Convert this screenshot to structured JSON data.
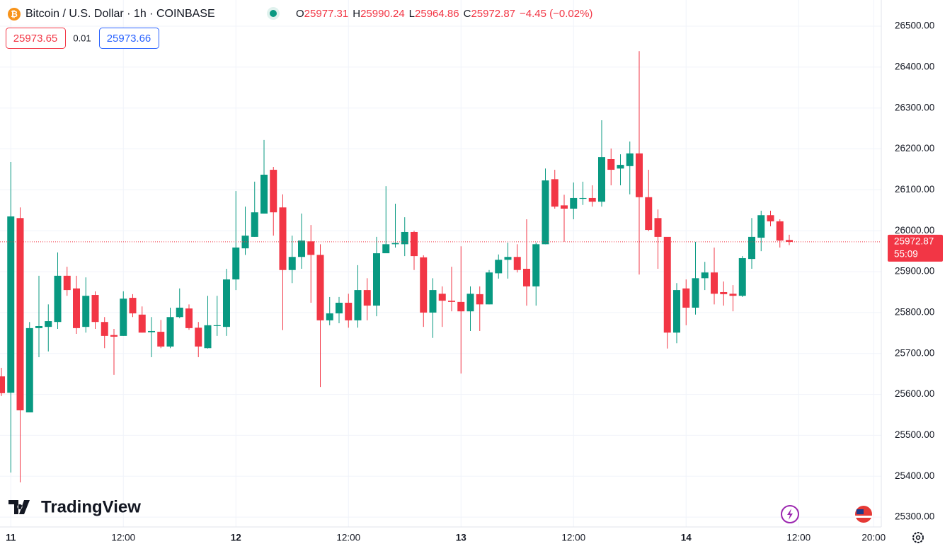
{
  "chart_data": {
    "type": "candlestick",
    "title": "Bitcoin / U.S. Dollar · 1h · COINBASE",
    "ohlc_labels": [
      "O",
      "H",
      "L",
      "C"
    ],
    "change": "−4.45 (−0.02%)",
    "sell_price": "25973.65",
    "spread": "0.01",
    "buy_price": "25973.66",
    "countdown": "55:09",
    "brand": "TradingView",
    "up_color": "#089981",
    "down_color": "#f23645",
    "grid": true,
    "ylim": [
      25276,
      26564
    ],
    "yticks": [
      {
        "value": 25300,
        "label": "25300.00"
      },
      {
        "value": 25400,
        "label": "25400.00"
      },
      {
        "value": 25500,
        "label": "25500.00"
      },
      {
        "value": 25600,
        "label": "25600.00"
      },
      {
        "value": 25700,
        "label": "25700.00"
      },
      {
        "value": 25800,
        "label": "25800.00"
      },
      {
        "value": 25900,
        "label": "25900.00"
      },
      {
        "value": 26000,
        "label": "26000.00"
      },
      {
        "value": 26100,
        "label": "26100.00"
      },
      {
        "value": 26200,
        "label": "26200.00"
      },
      {
        "value": 26300,
        "label": "26300.00"
      },
      {
        "value": 26400,
        "label": "26400.00"
      },
      {
        "value": 26500,
        "label": "26500.00"
      }
    ],
    "categories": [
      null,
      "11",
      null,
      null,
      null,
      null,
      null,
      null,
      null,
      null,
      null,
      null,
      null,
      "12:00",
      null,
      null,
      null,
      null,
      null,
      null,
      null,
      null,
      null,
      null,
      null,
      "12",
      null,
      null,
      null,
      null,
      null,
      null,
      null,
      null,
      null,
      null,
      null,
      "12:00",
      null,
      null,
      null,
      null,
      null,
      null,
      null,
      null,
      null,
      null,
      null,
      "13",
      null,
      null,
      null,
      null,
      null,
      null,
      null,
      null,
      null,
      null,
      null,
      "12:00",
      null,
      null,
      null,
      null,
      null,
      null,
      null,
      null,
      null,
      null,
      null,
      "14",
      null,
      null,
      null,
      null,
      null,
      null,
      null,
      null,
      null,
      null,
      null,
      "12:00",
      null,
      null,
      null,
      null,
      null,
      null,
      null,
      "20:00"
    ],
    "open": [
      25644,
      25604,
      26031,
      25556,
      25762,
      25765,
      25777,
      25890,
      25859,
      25765,
      25843,
      25777,
      25745,
      25743,
      25836,
      25795,
      25752,
      25753,
      25717,
      25789,
      25810,
      25763,
      25713,
      25767,
      25765,
      25881,
      25957,
      25985,
      26042,
      26149,
      26057,
      25904,
      25936,
      25974,
      25941,
      25781,
      25798,
      25824,
      25781,
      25855,
      25817,
      25945,
      25967,
      25967,
      25997,
      25935,
      25800,
      25846,
      25829,
      25826,
      25803,
      25845,
      25820,
      25896,
      25929,
      25936,
      25907,
      25864,
      25967,
      26126,
      26062,
      26054,
      26078,
      26080,
      26071,
      26175,
      26152,
      26158,
      26189,
      26082,
      26031,
      25985,
      25751,
      25859,
      25812,
      25884,
      25898,
      25850,
      25846,
      25841,
      25931,
      25983,
      26038,
      26023,
      25977.31,
      null,
      null,
      null,
      null,
      null,
      null,
      null,
      null,
      null
    ],
    "high": [
      25665,
      26168,
      26057,
      25777,
      25890,
      25820,
      25947,
      25912,
      25890,
      25886,
      25852,
      25789,
      25760,
      25852,
      25845,
      25815,
      25789,
      25782,
      25812,
      25859,
      25820,
      25777,
      25841,
      25841,
      25907,
      26097,
      26059,
      26120,
      26222,
      26156,
      26089,
      25988,
      26042,
      26014,
      25967,
      25838,
      25838,
      25846,
      25916,
      25884,
      25985,
      26109,
      26066,
      26033,
      26000,
      25940,
      25884,
      25864,
      25912,
      25962,
      25864,
      25864,
      25904,
      25942,
      25971,
      25967,
      26028,
      25971,
      26152,
      26149,
      26088,
      26118,
      26120,
      26111,
      26270,
      26201,
      26187,
      26218,
      26439,
      26149,
      26052,
      25976,
      25872,
      25881,
      25973,
      25924,
      25959,
      25876,
      25867,
      25938,
      26031,
      26049,
      26049,
      26028,
      25990.24,
      null,
      null,
      null,
      null,
      null,
      null,
      null,
      null,
      null
    ],
    "low": [
      25596,
      25409,
      25385,
      25556,
      25691,
      25705,
      25760,
      25841,
      25748,
      25751,
      25760,
      25713,
      25648,
      25743,
      25789,
      25751,
      25691,
      25713,
      25713,
      25786,
      25758,
      25691,
      25712,
      25743,
      25743,
      25855,
      25941,
      25985,
      26042,
      25988,
      25757,
      25872,
      25907,
      25824,
      25618,
      25769,
      25774,
      25763,
      25763,
      25781,
      25791,
      25948,
      25959,
      25938,
      25904,
      25765,
      25738,
      25765,
      25803,
      25651,
      25755,
      25755,
      25820,
      25883,
      25883,
      25898,
      25817,
      25817,
      25967,
      26054,
      25973,
      26028,
      26063,
      26059,
      26059,
      26111,
      26111,
      26089,
      25893,
      25999,
      25907,
      25712,
      25725,
      25769,
      25795,
      25855,
      25820,
      25817,
      25803,
      25838,
      25907,
      25950,
      26011,
      25959,
      25964.86,
      null,
      null,
      null,
      null,
      null,
      null,
      null,
      null,
      null
    ],
    "close": [
      25603,
      26035,
      25561,
      25762,
      25767,
      25779,
      25890,
      25855,
      25762,
      25841,
      25777,
      25743,
      25741,
      25834,
      25798,
      25751,
      25755,
      25717,
      25789,
      25812,
      25762,
      25717,
      25769,
      25769,
      25881,
      25959,
      25988,
      26045,
      26137,
      26045,
      25904,
      25936,
      25976,
      25941,
      25781,
      25798,
      25824,
      25781,
      25855,
      25817,
      25945,
      25967,
      25970,
      25997,
      25938,
      25800,
      25855,
      25829,
      25826,
      25803,
      25846,
      25820,
      25898,
      25929,
      25936,
      25904,
      25864,
      25967,
      26123,
      26059,
      26054,
      26080,
      26080,
      26071,
      26180,
      26149,
      26161,
      26189,
      26082,
      26002,
      25985,
      25751,
      25855,
      25812,
      25884,
      25898,
      25846,
      25845,
      25841,
      25933,
      25985,
      26038,
      26023,
      25976,
      25972.87,
      null,
      null,
      null,
      null,
      null,
      null,
      null,
      null,
      null
    ]
  }
}
